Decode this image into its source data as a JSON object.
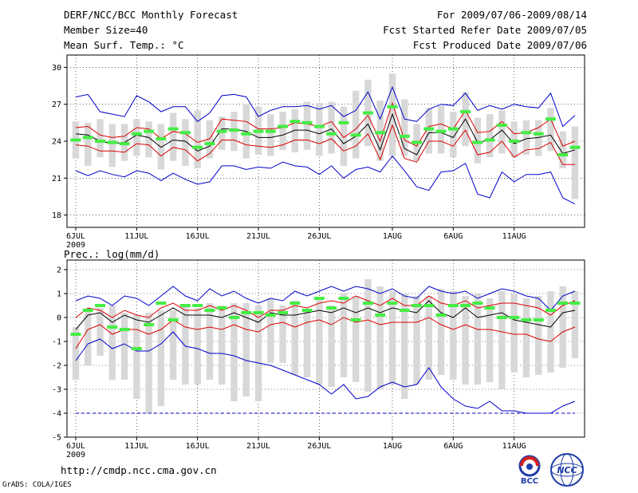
{
  "header": {
    "title": "DERF/NCC/BCC Monthly Forecast",
    "member_size": "Member Size=40",
    "variable": "Mean Surf. Temp.: °C",
    "period": "For 2009/07/06-2009/08/14",
    "start_date": "Fcst Started Refer Date 2009/07/05",
    "produced_date": "Fcst Produced Date 2009/07/06"
  },
  "footer": {
    "url": "http://cmdp.ncc.cma.gov.cn",
    "credit": "GrADS: COLA/IGES",
    "logo_bcc": "BCC",
    "logo_ncc": "NCC"
  },
  "colors": {
    "bar": "#d8d8d8",
    "observed": "#44ee44",
    "mean": "#000000",
    "spread": "#dd0000",
    "extreme": "#0000cc"
  },
  "chart_data": [
    {
      "type": "line",
      "title": "Mean Surf. Temp.: °C",
      "x_tick_labels": [
        "6JUL",
        "11JUL",
        "16JUL",
        "21JUL",
        "26JUL",
        "1AUG",
        "6AUG",
        "11AUG"
      ],
      "x_tick_days": [
        1,
        6,
        11,
        16,
        21,
        27,
        32,
        37
      ],
      "year_label": "2009",
      "ylim": [
        17,
        31
      ],
      "yticks": [
        18,
        21,
        24,
        27,
        30
      ],
      "series": [
        {
          "name": "max",
          "values": [
            27.6,
            27.8,
            26.4,
            26.2,
            26.0,
            27.7,
            27.2,
            26.4,
            26.8,
            26.8,
            25.6,
            26.3,
            27.7,
            27.8,
            27.6,
            26.0,
            26.5,
            26.8,
            26.8,
            26.9,
            26.6,
            26.9,
            26.0,
            26.5,
            28.0,
            25.8,
            28.4,
            25.8,
            25.6,
            26.6,
            27.0,
            26.9,
            27.9,
            26.5,
            26.9,
            26.6,
            27.0,
            26.8,
            26.7,
            27.9,
            25.2,
            26.1
          ]
        },
        {
          "name": "spread_upper",
          "values": [
            25.1,
            25.2,
            24.5,
            24.3,
            24.4,
            25.1,
            25.0,
            24.2,
            24.8,
            24.6,
            23.9,
            24.2,
            25.8,
            25.7,
            25.6,
            25.0,
            25.0,
            25.1,
            25.5,
            25.4,
            25.2,
            25.6,
            24.3,
            25.0,
            26.1,
            24.0,
            27.1,
            24.1,
            23.6,
            25.2,
            25.4,
            25.0,
            26.5,
            24.7,
            24.8,
            25.6,
            24.6,
            24.7,
            25.1,
            25.8,
            23.6,
            24.0
          ]
        },
        {
          "name": "mean",
          "values": [
            24.6,
            24.5,
            24.0,
            23.8,
            23.9,
            24.5,
            24.3,
            23.5,
            24.1,
            24.0,
            23.2,
            23.6,
            25.0,
            25.0,
            24.8,
            24.3,
            24.3,
            24.5,
            24.9,
            24.9,
            24.6,
            25.0,
            23.8,
            24.4,
            25.4,
            23.3,
            26.2,
            23.4,
            22.9,
            24.7,
            24.7,
            24.3,
            25.8,
            23.9,
            24.1,
            24.9,
            23.8,
            24.2,
            24.3,
            24.5,
            23.0,
            23.3
          ]
        },
        {
          "name": "spread_lower",
          "values": [
            23.7,
            23.6,
            23.2,
            23.2,
            23.1,
            23.8,
            23.7,
            22.8,
            23.5,
            23.3,
            22.4,
            23.0,
            24.1,
            24.1,
            23.7,
            23.6,
            23.5,
            23.7,
            24.1,
            24.1,
            23.8,
            24.2,
            23.2,
            23.6,
            24.6,
            22.5,
            25.3,
            22.6,
            22.3,
            24.0,
            24.0,
            23.6,
            24.9,
            22.9,
            23.1,
            24.0,
            22.7,
            23.3,
            23.4,
            23.9,
            22.1,
            22.1
          ]
        },
        {
          "name": "min",
          "values": [
            21.6,
            21.2,
            21.6,
            21.3,
            21.1,
            21.6,
            21.4,
            20.8,
            21.4,
            20.9,
            20.5,
            20.7,
            22.0,
            22.0,
            21.7,
            21.9,
            21.8,
            22.3,
            22.0,
            21.9,
            21.3,
            22.0,
            21.0,
            21.7,
            21.9,
            21.5,
            22.8,
            21.6,
            20.3,
            20.0,
            21.5,
            21.6,
            22.2,
            19.7,
            19.4,
            21.5,
            20.7,
            21.3,
            21.3,
            21.5,
            19.4,
            18.9
          ]
        },
        {
          "name": "box_high",
          "values": [
            25.6,
            25.5,
            25.8,
            25.4,
            25.4,
            25.8,
            25.6,
            25.4,
            26.3,
            25.8,
            26.5,
            25.7,
            26.0,
            26.4,
            27.0,
            26.8,
            26.2,
            26.4,
            26.6,
            27.2,
            27.1,
            27.2,
            26.8,
            28.1,
            29.0,
            27.3,
            29.5,
            27.4,
            25.4,
            26.7,
            26.9,
            26.4,
            28.0,
            25.9,
            26.2,
            26.5,
            25.6,
            25.7,
            25.7,
            26.7,
            24.8,
            25.2
          ]
        },
        {
          "name": "box_low",
          "values": [
            22.6,
            22.0,
            22.7,
            21.9,
            22.4,
            22.8,
            22.7,
            21.7,
            22.4,
            22.0,
            21.8,
            22.6,
            23.3,
            23.2,
            22.6,
            22.9,
            22.8,
            23.3,
            23.1,
            23.3,
            22.8,
            23.0,
            22.0,
            22.6,
            23.6,
            22.4,
            22.8,
            22.8,
            22.4,
            23.0,
            23.0,
            22.7,
            23.6,
            22.2,
            22.7,
            23.0,
            22.7,
            22.9,
            22.8,
            23.2,
            21.8,
            19.3
          ]
        },
        {
          "name": "observed_mark",
          "values": [
            24.1,
            24.3,
            24.0,
            23.9,
            23.8,
            24.6,
            24.8,
            24.2,
            25.0,
            24.7,
            23.5,
            23.8,
            24.8,
            24.9,
            24.6,
            24.8,
            24.8,
            25.2,
            25.6,
            25.5,
            25.2,
            24.6,
            25.5,
            24.5,
            26.3,
            24.7,
            26.8,
            24.4,
            23.9,
            25.0,
            24.8,
            25.0,
            26.4,
            23.9,
            24.1,
            25.3,
            24.0,
            24.7,
            24.6,
            25.8,
            22.9,
            23.5
          ]
        }
      ]
    },
    {
      "type": "line",
      "title": "Prec.: log(mm/d)",
      "x_tick_labels": [
        "6JUL",
        "11JUL",
        "16JUL",
        "21JUL",
        "26JUL",
        "1AUG",
        "6AUG",
        "11AUG"
      ],
      "x_tick_days": [
        1,
        6,
        11,
        16,
        21,
        27,
        32,
        37
      ],
      "year_label": "2009",
      "ylim": [
        -5,
        2.4
      ],
      "yticks": [
        -5,
        -4,
        -3,
        -2,
        -1,
        0,
        1,
        2
      ],
      "series": [
        {
          "name": "max",
          "values": [
            0.7,
            0.9,
            0.8,
            0.5,
            0.9,
            0.8,
            0.5,
            0.9,
            1.3,
            0.9,
            0.7,
            1.2,
            0.9,
            1.1,
            0.8,
            0.6,
            0.8,
            0.7,
            1.1,
            0.9,
            1.1,
            1.3,
            1.1,
            1.3,
            1.2,
            1.0,
            1.2,
            0.9,
            0.8,
            1.3,
            1.1,
            1.0,
            1.1,
            0.8,
            1.0,
            1.2,
            1.1,
            0.9,
            0.8,
            0.3,
            0.9,
            1.1
          ]
        },
        {
          "name": "spread_upper",
          "values": [
            0.0,
            0.4,
            0.3,
            0.0,
            0.3,
            0.1,
            0.0,
            0.4,
            0.6,
            0.3,
            0.3,
            0.5,
            0.3,
            0.5,
            0.3,
            0.0,
            0.3,
            0.3,
            0.5,
            0.4,
            0.6,
            0.7,
            0.6,
            0.9,
            0.7,
            0.5,
            0.8,
            0.5,
            0.5,
            0.9,
            0.6,
            0.5,
            0.7,
            0.4,
            0.5,
            0.6,
            0.6,
            0.5,
            0.4,
            0.1,
            0.5,
            0.7
          ]
        },
        {
          "name": "mean",
          "values": [
            -0.5,
            0.1,
            0.2,
            -0.2,
            0.1,
            -0.1,
            -0.2,
            0.1,
            0.4,
            0.1,
            0.1,
            0.1,
            0.0,
            0.2,
            0.0,
            -0.2,
            0.2,
            0.1,
            0.1,
            0.2,
            0.3,
            0.2,
            0.4,
            0.2,
            0.4,
            0.2,
            0.4,
            0.3,
            0.2,
            0.7,
            0.2,
            0.0,
            0.4,
            0.0,
            0.1,
            0.2,
            -0.1,
            -0.2,
            -0.3,
            -0.4,
            0.2,
            0.3
          ]
        },
        {
          "name": "spread_lower",
          "values": [
            -1.3,
            -0.5,
            -0.3,
            -0.7,
            -0.5,
            -0.5,
            -0.7,
            -0.5,
            -0.1,
            -0.4,
            -0.5,
            -0.4,
            -0.5,
            -0.3,
            -0.5,
            -0.6,
            -0.3,
            -0.2,
            -0.4,
            -0.2,
            -0.1,
            -0.3,
            0.0,
            -0.2,
            -0.1,
            -0.3,
            -0.2,
            -0.2,
            -0.2,
            0.0,
            -0.3,
            -0.5,
            -0.3,
            -0.5,
            -0.5,
            -0.6,
            -0.7,
            -0.7,
            -0.9,
            -1.0,
            -0.6,
            -0.4
          ]
        },
        {
          "name": "min",
          "values": [
            -1.8,
            -1.1,
            -0.9,
            -1.3,
            -1.1,
            -1.4,
            -1.4,
            -1.1,
            -0.6,
            -1.2,
            -1.3,
            -1.5,
            -1.5,
            -1.6,
            -1.8,
            -1.9,
            -2.0,
            -2.2,
            -2.4,
            -2.6,
            -2.8,
            -3.2,
            -2.8,
            -3.4,
            -3.3,
            -2.9,
            -2.7,
            -2.9,
            -2.8,
            -2.1,
            -2.9,
            -3.4,
            -3.7,
            -3.8,
            -3.5,
            -3.9,
            -3.9,
            -4.0,
            -4.0,
            -4.0,
            -3.7,
            -3.5
          ]
        },
        {
          "name": "floor",
          "values": [
            -4.0,
            -4.0,
            -4.0,
            -4.0,
            -4.0,
            -4.0,
            -4.0,
            -4.0,
            -4.0,
            -4.0,
            -4.0,
            -4.0,
            -4.0,
            -4.0,
            -4.0,
            -4.0,
            -4.0,
            -4.0,
            -4.0,
            -4.0,
            -4.0,
            -4.0,
            -4.0,
            -4.0,
            -4.0,
            -4.0,
            -4.0,
            -4.0,
            -4.0,
            -4.0,
            -4.0,
            -4.0,
            -4.0,
            -4.0,
            -4.0,
            -4.0,
            -4.0,
            -4.0,
            -4.0,
            -4.0,
            -4.0,
            -4.0
          ]
        },
        {
          "name": "box_high",
          "values": [
            -0.4,
            0.3,
            0.4,
            0.5,
            0.2,
            0.1,
            0.2,
            0.3,
            0.3,
            0.5,
            0.4,
            0.6,
            0.5,
            0.6,
            0.6,
            0.5,
            0.8,
            0.5,
            0.7,
            0.3,
            0.8,
            0.5,
            1.0,
            0.9,
            1.6,
            1.3,
            1.1,
            1.0,
            0.9,
            0.9,
            1.2,
            1.1,
            0.9,
            1.0,
            0.8,
            1.1,
            1.0,
            0.8,
            0.9,
            1.1,
            1.3,
            1.1
          ]
        },
        {
          "name": "box_low",
          "values": [
            -2.6,
            -2.0,
            -1.6,
            -2.6,
            -2.6,
            -3.4,
            -4.0,
            -3.7,
            -2.6,
            -2.8,
            -2.8,
            -2.6,
            -2.8,
            -3.5,
            -3.3,
            -3.5,
            -1.9,
            -1.9,
            -2.4,
            -2.5,
            -2.8,
            -2.9,
            -2.5,
            -2.7,
            -3.1,
            -3.0,
            -2.8,
            -3.4,
            -2.8,
            -2.6,
            -2.4,
            -2.6,
            -2.8,
            -2.8,
            -2.7,
            -3.0,
            -2.3,
            -2.5,
            -2.4,
            -2.3,
            -2.1,
            -1.7
          ]
        },
        {
          "name": "observed_mark",
          "values": [
            -0.7,
            0.3,
            0.5,
            -0.4,
            -0.5,
            -1.3,
            -0.3,
            0.6,
            -0.1,
            0.5,
            0.5,
            0.3,
            0.4,
            0.0,
            0.2,
            0.2,
            0.1,
            0.2,
            0.6,
            0.3,
            0.8,
            0.4,
            0.8,
            -0.1,
            0.6,
            0.1,
            0.6,
            0.3,
            0.5,
            0.5,
            0.1,
            0.5,
            0.5,
            0.6,
            0.4,
            0.0,
            0.0,
            -0.1,
            -0.1,
            0.3,
            0.6,
            0.6
          ]
        }
      ]
    }
  ]
}
